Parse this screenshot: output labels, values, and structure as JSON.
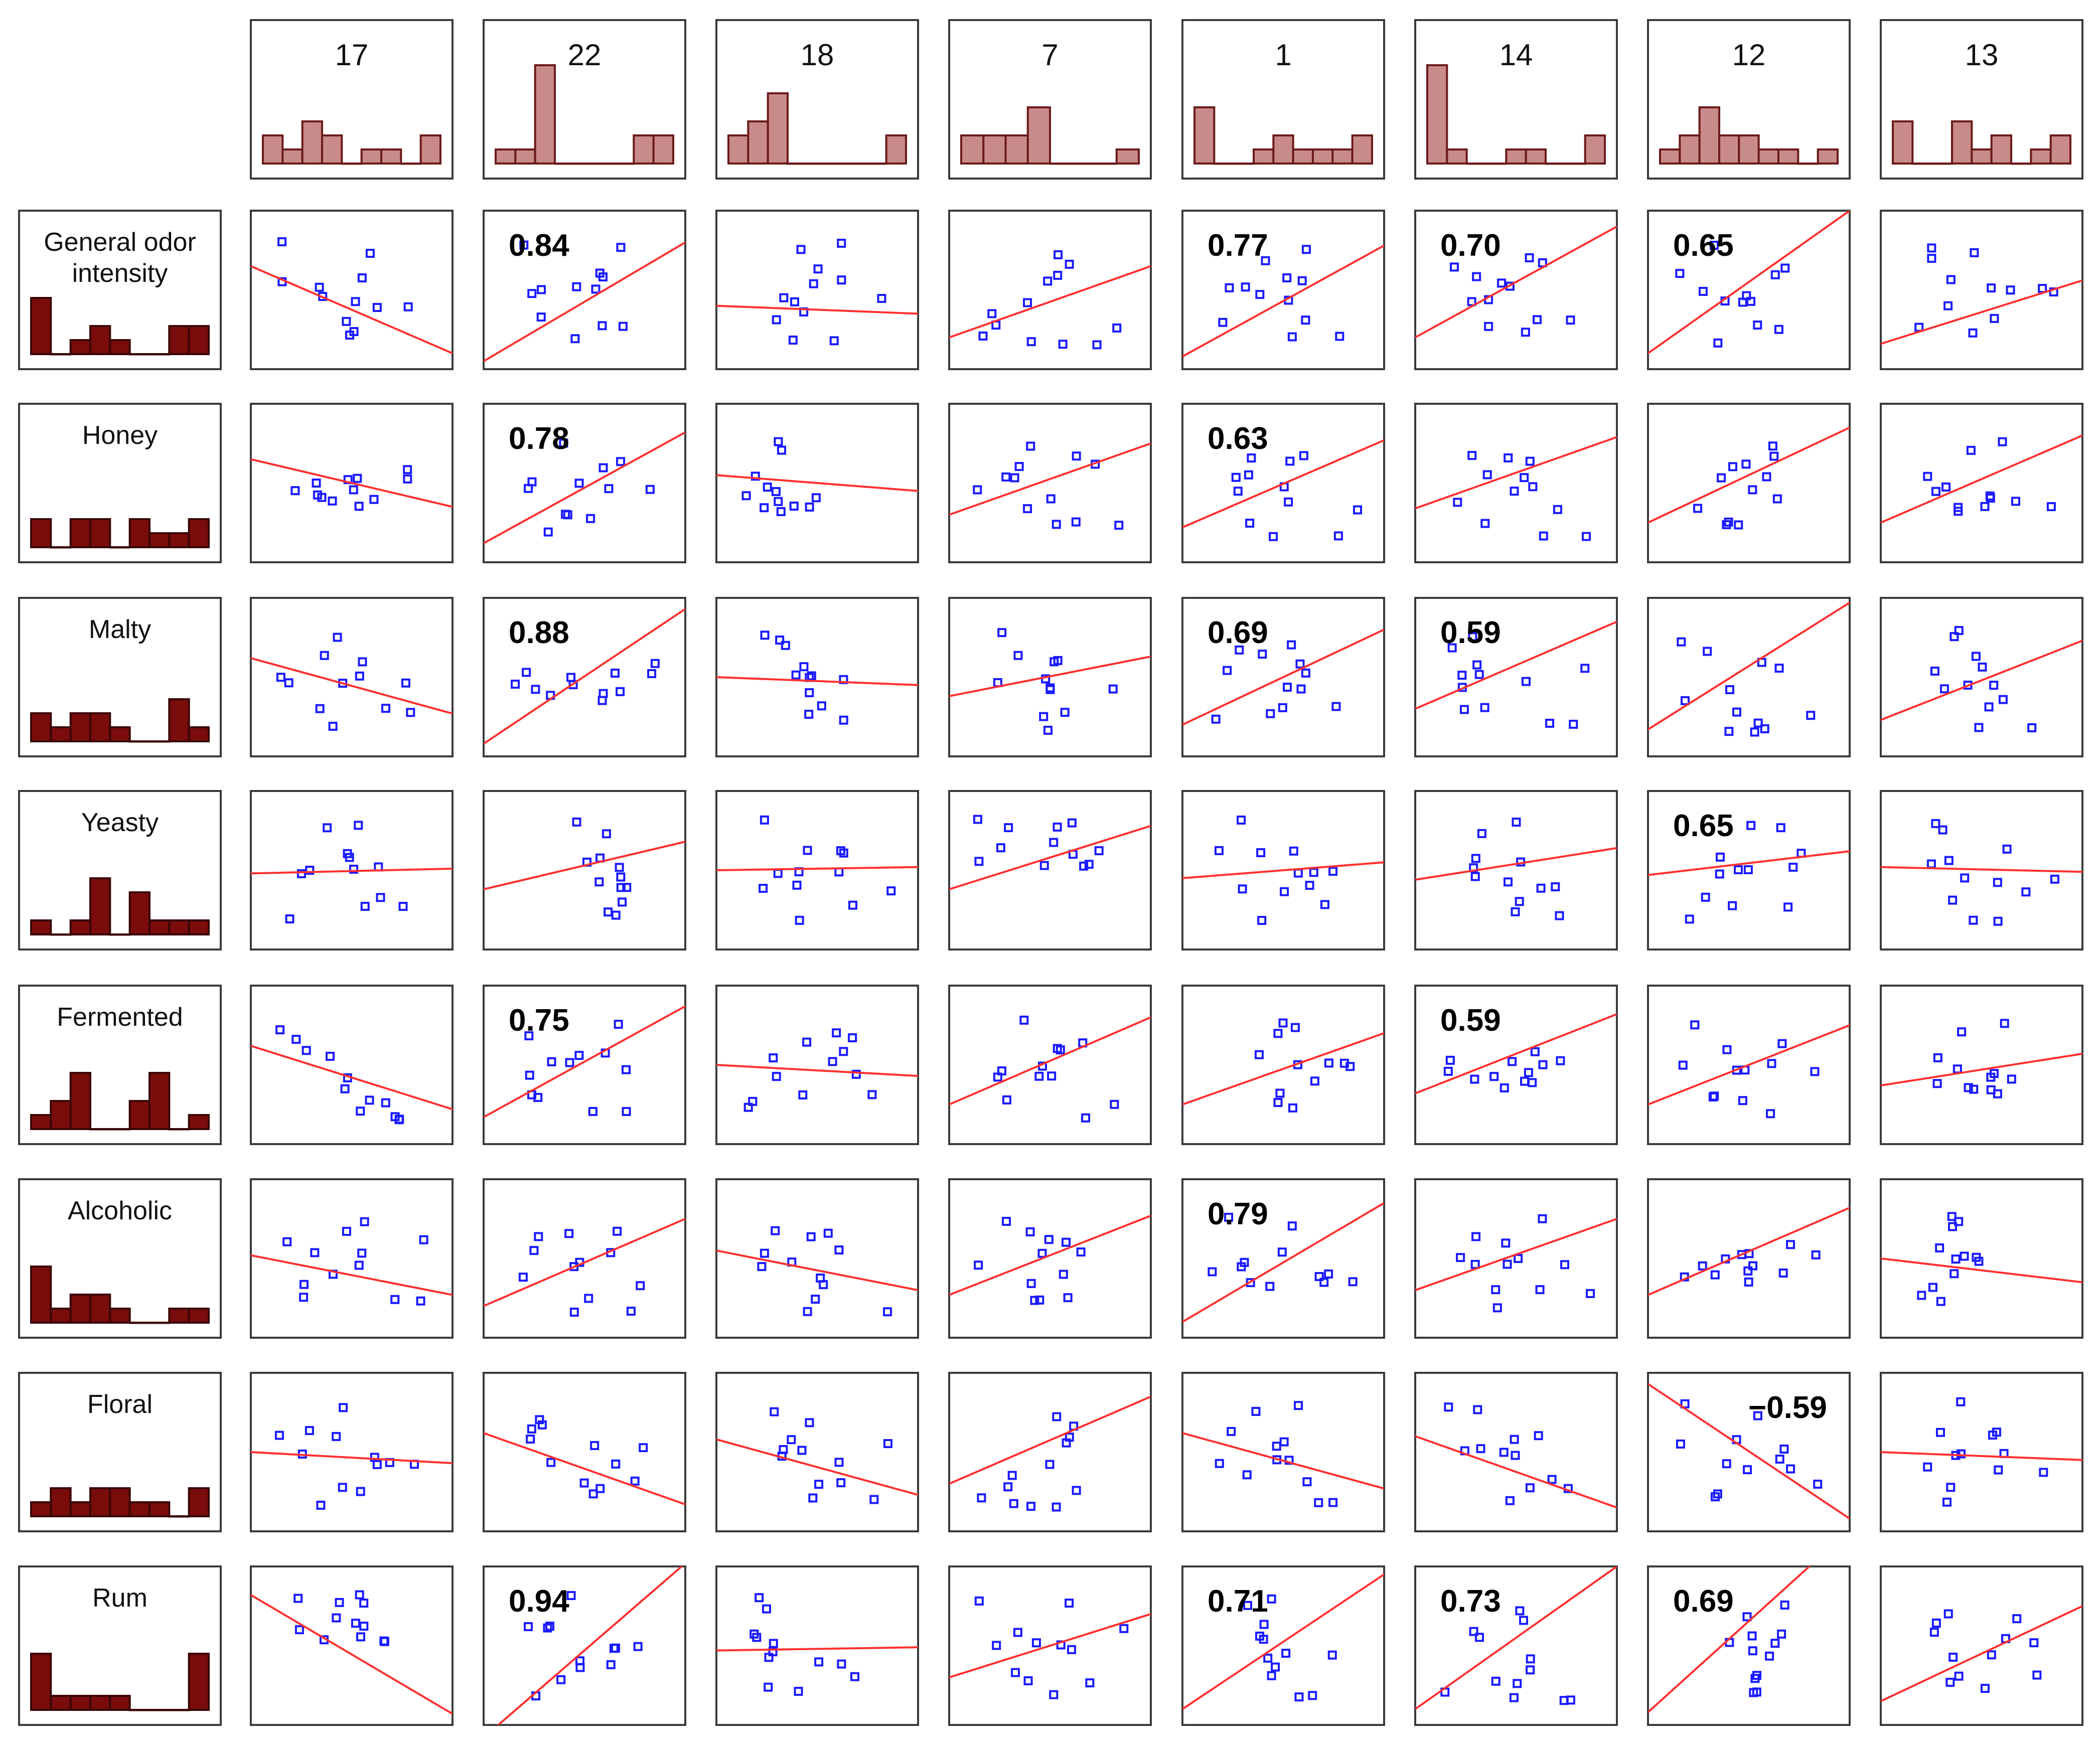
{
  "chart_data": {
    "type": "scatter-matrix",
    "title": "",
    "colors": {
      "points": "#1a1aff",
      "fit_line": "#ff3030",
      "col_hist_fill": "#c98a8a",
      "col_hist_stroke": "#6b1a1a",
      "row_hist_fill": "#7a0c0c",
      "row_hist_stroke": "#3a0505"
    },
    "columns": [
      {
        "name": "17",
        "hist": [
          2,
          1,
          3,
          2,
          0,
          1,
          1,
          0,
          2
        ]
      },
      {
        "name": "22",
        "hist": [
          1,
          1,
          7,
          0,
          0,
          0,
          0,
          2,
          2
        ]
      },
      {
        "name": "18",
        "hist": [
          2,
          3,
          5,
          0,
          0,
          0,
          0,
          0,
          2
        ]
      },
      {
        "name": "7",
        "hist": [
          2,
          2,
          2,
          4,
          0,
          0,
          0,
          1
        ]
      },
      {
        "name": "1",
        "hist": [
          4,
          0,
          0,
          1,
          2,
          1,
          1,
          1,
          2
        ]
      },
      {
        "name": "14",
        "hist": [
          7,
          1,
          0,
          0,
          1,
          1,
          0,
          0,
          2
        ]
      },
      {
        "name": "12",
        "hist": [
          1,
          2,
          4,
          2,
          2,
          1,
          1,
          0,
          1
        ]
      },
      {
        "name": "13",
        "hist": [
          3,
          0,
          0,
          3,
          1,
          2,
          0,
          1,
          2
        ]
      }
    ],
    "rows": [
      {
        "name": "General odor intensity",
        "hist": [
          4,
          0,
          1,
          2,
          1,
          0,
          0,
          2,
          2
        ],
        "r": [
          "",
          "0.84",
          "",
          "",
          "0.77",
          "0.70",
          "0.65",
          ""
        ],
        "slopes": [
          -0.55,
          0.75,
          -0.05,
          0.45,
          0.7,
          0.7,
          0.9,
          0.4
        ],
        "intercepts": [
          0.65,
          0.05,
          0.4,
          0.2,
          0.08,
          0.2,
          0.1,
          0.16
        ]
      },
      {
        "name": "Honey",
        "hist": [
          2,
          0,
          2,
          2,
          0,
          2,
          1,
          1,
          2
        ],
        "r": [
          "",
          "0.78",
          "",
          "",
          "0.63",
          "",
          "",
          ""
        ],
        "slopes": [
          -0.3,
          0.7,
          -0.1,
          0.45,
          0.55,
          0.45,
          0.6,
          0.55
        ],
        "intercepts": [
          0.65,
          0.12,
          0.55,
          0.3,
          0.22,
          0.34,
          0.25,
          0.25
        ]
      },
      {
        "name": "Malty",
        "hist": [
          2,
          1,
          2,
          2,
          1,
          0,
          0,
          3,
          1
        ],
        "r": [
          "",
          "0.88",
          "",
          "",
          "0.69",
          "0.59",
          "",
          ""
        ],
        "slopes": [
          -0.35,
          0.85,
          -0.05,
          0.25,
          0.6,
          0.55,
          0.8,
          0.5
        ],
        "intercepts": [
          0.62,
          0.08,
          0.5,
          0.38,
          0.2,
          0.3,
          0.17,
          0.23
        ]
      },
      {
        "name": "Yeasty",
        "hist": [
          1,
          0,
          1,
          4,
          0,
          3,
          1,
          1,
          1
        ],
        "r": [
          "",
          "",
          "",
          "",
          "",
          "",
          "0.65",
          ""
        ],
        "slopes": [
          0.03,
          0.3,
          0.02,
          0.4,
          0.1,
          0.2,
          0.15,
          -0.03
        ],
        "intercepts": [
          0.48,
          0.38,
          0.5,
          0.38,
          0.45,
          0.44,
          0.47,
          0.52
        ]
      },
      {
        "name": "Fermented",
        "hist": [
          1,
          2,
          4,
          0,
          0,
          2,
          4,
          0,
          1
        ],
        "r": [
          "",
          "0.75",
          "",
          "",
          "",
          "0.59",
          "",
          ""
        ],
        "slopes": [
          -0.4,
          0.7,
          -0.07,
          0.55,
          0.45,
          0.5,
          0.5,
          0.2
        ],
        "intercepts": [
          0.62,
          0.17,
          0.5,
          0.25,
          0.25,
          0.32,
          0.25,
          0.37
        ]
      },
      {
        "name": "Alcoholic",
        "hist": [
          4,
          1,
          2,
          2,
          1,
          0,
          0,
          1,
          1
        ],
        "r": [
          "",
          "",
          "",
          "",
          "0.79",
          "",
          "",
          ""
        ],
        "slopes": [
          -0.25,
          0.55,
          -0.25,
          0.5,
          0.75,
          0.45,
          0.55,
          -0.15
        ],
        "intercepts": [
          0.52,
          0.2,
          0.55,
          0.27,
          0.1,
          0.3,
          0.27,
          0.5
        ]
      },
      {
        "name": "Floral",
        "hist": [
          1,
          2,
          1,
          2,
          2,
          1,
          1,
          0,
          2
        ],
        "r": [
          "",
          "",
          "",
          "",
          "",
          "",
          "−0.59",
          ""
        ],
        "slopes": [
          -0.07,
          -0.45,
          -0.35,
          0.55,
          -0.35,
          -0.45,
          -0.85,
          -0.05
        ],
        "intercepts": [
          0.5,
          0.62,
          0.58,
          0.3,
          0.62,
          0.6,
          0.93,
          0.5
        ]
      },
      {
        "name": "Rum",
        "hist": [
          4,
          1,
          1,
          1,
          1,
          0,
          0,
          0,
          4
        ],
        "r": [
          "",
          "0.94",
          "",
          "",
          "0.71",
          "0.73",
          "0.69",
          ""
        ],
        "slopes": [
          -0.75,
          1.1,
          0.02,
          0.4,
          0.85,
          0.9,
          1.15,
          0.6
        ],
        "intercepts": [
          0.82,
          -0.08,
          0.47,
          0.3,
          0.1,
          0.1,
          0.08,
          0.15
        ]
      }
    ],
    "points": [
      [
        0.1,
        0.86
      ],
      [
        0.3,
        0.8
      ],
      [
        0.33,
        0.72
      ],
      [
        0.45,
        0.73
      ],
      [
        0.45,
        0.47
      ],
      [
        0.2,
        0.38
      ],
      [
        0.33,
        0.27
      ],
      [
        0.12,
        0.15
      ],
      [
        0.55,
        0.1
      ],
      [
        0.7,
        0.08
      ],
      [
        0.87,
        0.07
      ],
      [
        0.92,
        0.33
      ],
      [
        0.88,
        0.9
      ],
      [
        0.95,
        0.75
      ],
      [
        0.78,
        0.82
      ],
      [
        0.82,
        0.76
      ],
      [
        0.3,
        0.4
      ],
      [
        0.28,
        0.5
      ],
      [
        0.33,
        0.44
      ],
      [
        0.12,
        0.32
      ]
    ],
    "x_range": [
      0,
      1
    ],
    "y_range": [
      0,
      1
    ]
  }
}
